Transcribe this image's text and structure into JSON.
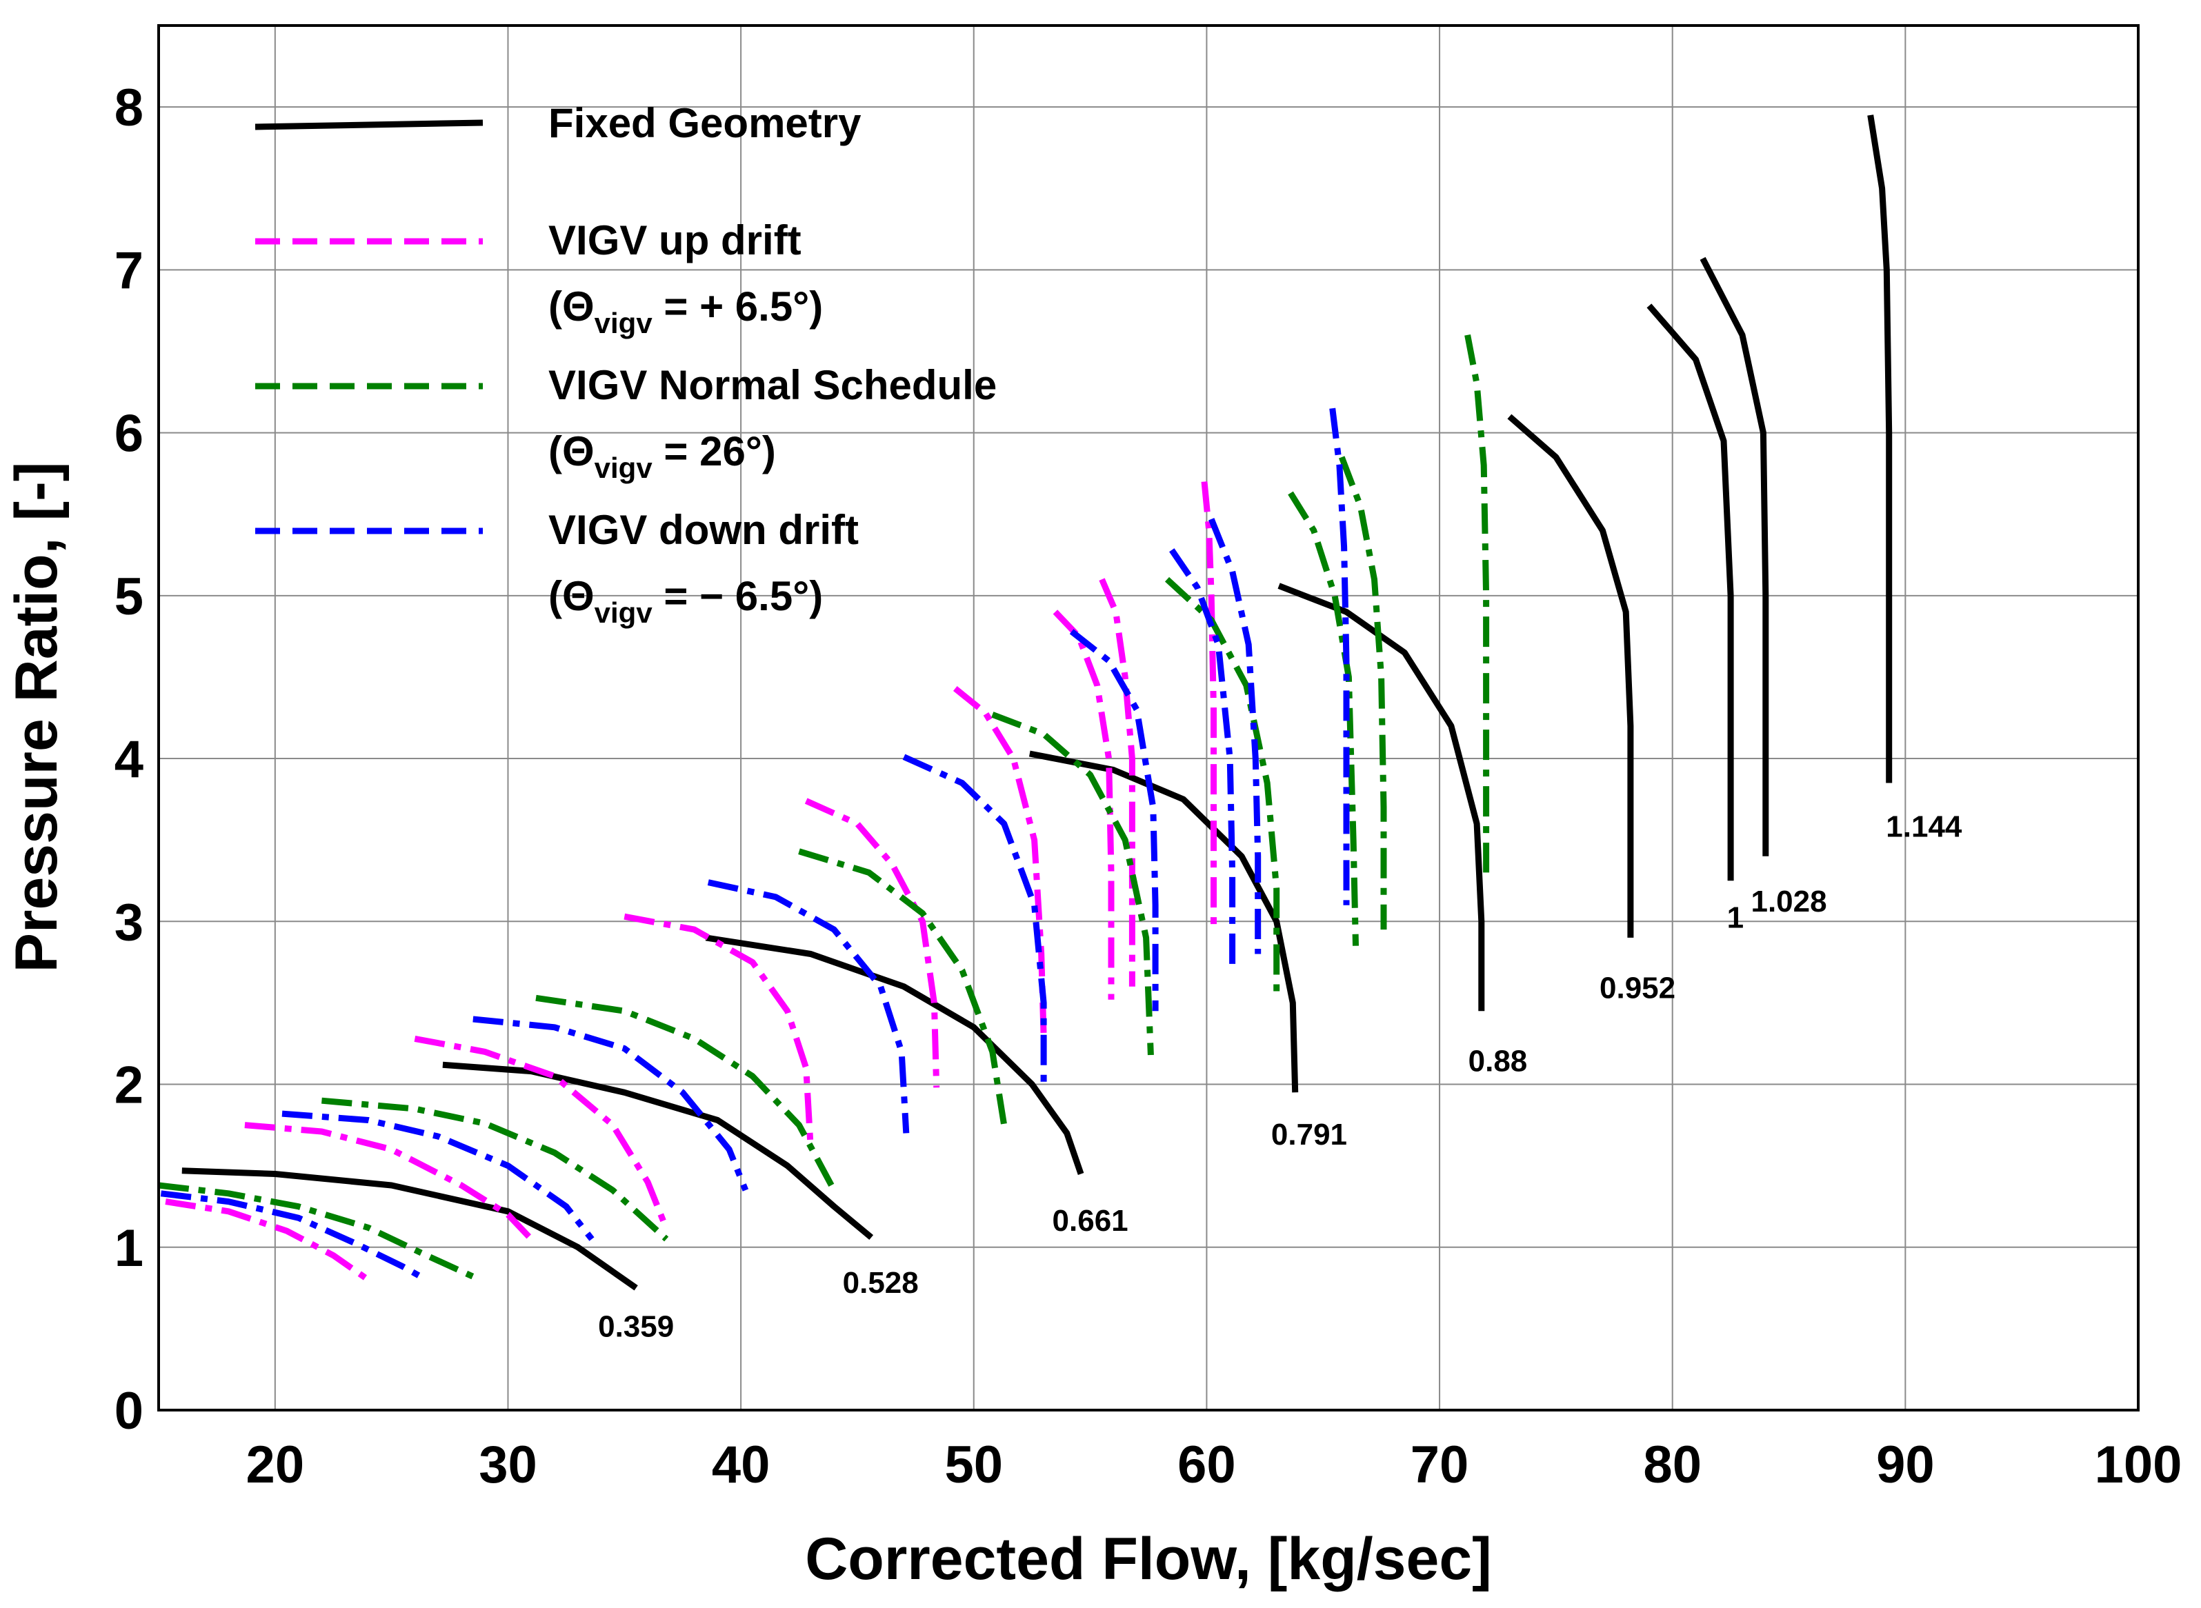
{
  "chart_data": {
    "type": "line",
    "title": "",
    "xlabel": "Corrected Flow, [kg/sec]",
    "ylabel": "Pressure Ratio, [-]",
    "xlim": [
      15,
      100
    ],
    "ylim": [
      0,
      8.5
    ],
    "xticks": [
      20,
      30,
      40,
      50,
      60,
      70,
      80,
      90,
      100
    ],
    "yticks": [
      0,
      1,
      2,
      3,
      4,
      5,
      6,
      7,
      8
    ],
    "grid": true,
    "legend_position": "top-left",
    "legend": [
      {
        "key": "fixed",
        "label": "Fixed Geometry",
        "color": "#000000",
        "style": "solid",
        "paren": null
      },
      {
        "key": "up",
        "label": "VIGV up drift",
        "color": "#ff00ff",
        "style": "dashdot",
        "paren": {
          "open": "(Θ",
          "sub": "vigv",
          "rest": " = + 6.5°)"
        }
      },
      {
        "key": "normal",
        "label": "VIGV Normal Schedule",
        "color": "#008000",
        "style": "dashdot",
        "paren": {
          "open": "(Θ",
          "sub": "vigv",
          "rest": " = 26°)"
        }
      },
      {
        "key": "down",
        "label": "VIGV down drift",
        "color": "#0000ff",
        "style": "dashdot",
        "paren": {
          "open": "(Θ",
          "sub": "vigv",
          "rest": " = − 6.5°)"
        }
      }
    ],
    "speed_labels": [
      {
        "text": "0.359",
        "x": 35.5,
        "y": 0.45
      },
      {
        "text": "0.528",
        "x": 46.0,
        "y": 0.72
      },
      {
        "text": "0.661",
        "x": 55.0,
        "y": 1.1
      },
      {
        "text": "0.791",
        "x": 64.4,
        "y": 1.63
      },
      {
        "text": "0.88",
        "x": 72.5,
        "y": 2.08
      },
      {
        "text": "0.952",
        "x": 78.5,
        "y": 2.53
      },
      {
        "text": "1",
        "x": 82.7,
        "y": 2.96
      },
      {
        "text": "1.028",
        "x": 85.0,
        "y": 3.06
      },
      {
        "text": "1.144",
        "x": 90.8,
        "y": 3.52
      }
    ],
    "series": [
      {
        "name": "Fixed Geometry",
        "color": "#000000",
        "style": "solid",
        "curves": [
          [
            [
              16.0,
              1.47
            ],
            [
              20,
              1.45
            ],
            [
              25,
              1.38
            ],
            [
              30,
              1.22
            ],
            [
              33,
              1.0
            ],
            [
              35.5,
              0.75
            ]
          ],
          [
            [
              27.2,
              2.12
            ],
            [
              31,
              2.08
            ],
            [
              35,
              1.95
            ],
            [
              39,
              1.78
            ],
            [
              42,
              1.5
            ],
            [
              44,
              1.25
            ],
            [
              45.6,
              1.06
            ]
          ],
          [
            [
              38.5,
              2.9
            ],
            [
              43,
              2.8
            ],
            [
              47,
              2.6
            ],
            [
              50,
              2.35
            ],
            [
              52.5,
              2.0
            ],
            [
              54,
              1.7
            ],
            [
              54.6,
              1.45
            ]
          ],
          [
            [
              52.4,
              4.03
            ],
            [
              56,
              3.93
            ],
            [
              59,
              3.75
            ],
            [
              61.5,
              3.4
            ],
            [
              63,
              3.0
            ],
            [
              63.7,
              2.5
            ],
            [
              63.8,
              1.95
            ]
          ],
          [
            [
              63.1,
              5.06
            ],
            [
              66,
              4.9
            ],
            [
              68.5,
              4.65
            ],
            [
              70.5,
              4.2
            ],
            [
              71.6,
              3.6
            ],
            [
              71.8,
              3.0
            ],
            [
              71.8,
              2.45
            ]
          ],
          [
            [
              73.0,
              6.1
            ],
            [
              75,
              5.85
            ],
            [
              77,
              5.4
            ],
            [
              78.0,
              4.9
            ],
            [
              78.2,
              4.2
            ],
            [
              78.2,
              2.9
            ]
          ],
          [
            [
              79.0,
              6.78
            ],
            [
              81,
              6.45
            ],
            [
              82.2,
              5.95
            ],
            [
              82.5,
              5.0
            ],
            [
              82.5,
              3.25
            ]
          ],
          [
            [
              81.3,
              7.07
            ],
            [
              83,
              6.6
            ],
            [
              83.9,
              6.0
            ],
            [
              84.0,
              5.0
            ],
            [
              84.0,
              3.4
            ]
          ],
          [
            [
              88.5,
              7.95
            ],
            [
              89.0,
              7.5
            ],
            [
              89.2,
              7.0
            ],
            [
              89.3,
              6.0
            ],
            [
              89.3,
              3.85
            ]
          ]
        ]
      },
      {
        "name": "VIGV up drift",
        "color": "#ff00ff",
        "style": "dashdot",
        "curves": [
          [
            [
              15.3,
              1.28
            ],
            [
              18,
              1.22
            ],
            [
              20.5,
              1.1
            ],
            [
              22.5,
              0.95
            ],
            [
              24.0,
              0.8
            ]
          ],
          [
            [
              18.7,
              1.75
            ],
            [
              22,
              1.71
            ],
            [
              25,
              1.6
            ],
            [
              28,
              1.38
            ],
            [
              30,
              1.2
            ],
            [
              31.0,
              1.05
            ]
          ],
          [
            [
              26.0,
              2.28
            ],
            [
              29,
              2.2
            ],
            [
              32,
              2.05
            ],
            [
              34.5,
              1.75
            ],
            [
              36,
              1.4
            ],
            [
              36.7,
              1.15
            ]
          ],
          [
            [
              35.0,
              3.03
            ],
            [
              38,
              2.95
            ],
            [
              40.5,
              2.75
            ],
            [
              42,
              2.45
            ],
            [
              42.8,
              2.1
            ],
            [
              43.0,
              1.6
            ]
          ],
          [
            [
              42.8,
              3.74
            ],
            [
              45,
              3.6
            ],
            [
              46.5,
              3.35
            ],
            [
              47.8,
              3.0
            ],
            [
              48.3,
              2.5
            ],
            [
              48.4,
              1.98
            ]
          ],
          [
            [
              49.2,
              4.43
            ],
            [
              50.5,
              4.28
            ],
            [
              51.7,
              4.0
            ],
            [
              52.6,
              3.5
            ],
            [
              52.9,
              2.8
            ],
            [
              53.0,
              2.3
            ]
          ],
          [
            [
              53.5,
              4.9
            ],
            [
              54.5,
              4.75
            ],
            [
              55.3,
              4.45
            ],
            [
              55.8,
              4.0
            ],
            [
              55.9,
              3.3
            ],
            [
              55.9,
              2.52
            ]
          ],
          [
            [
              55.5,
              5.1
            ],
            [
              56.1,
              4.9
            ],
            [
              56.5,
              4.5
            ],
            [
              56.8,
              4.0
            ],
            [
              56.8,
              3.3
            ],
            [
              56.8,
              2.6
            ]
          ],
          [
            [
              59.9,
              5.7
            ],
            [
              60.1,
              5.4
            ],
            [
              60.2,
              5.0
            ],
            [
              60.3,
              4.3
            ],
            [
              60.3,
              3.5
            ],
            [
              60.3,
              2.95
            ]
          ]
        ]
      },
      {
        "name": "VIGV Normal Schedule",
        "color": "#008000",
        "style": "dashdot",
        "curves": [
          [
            [
              15.0,
              1.38
            ],
            [
              18,
              1.33
            ],
            [
              21,
              1.25
            ],
            [
              24,
              1.12
            ],
            [
              26.5,
              0.95
            ],
            [
              28.8,
              0.8
            ]
          ],
          [
            [
              22.0,
              1.9
            ],
            [
              26,
              1.85
            ],
            [
              29,
              1.76
            ],
            [
              32,
              1.58
            ],
            [
              34.5,
              1.35
            ],
            [
              36.8,
              1.05
            ]
          ],
          [
            [
              31.2,
              2.53
            ],
            [
              35,
              2.45
            ],
            [
              38,
              2.28
            ],
            [
              40.5,
              2.05
            ],
            [
              42.5,
              1.75
            ],
            [
              44.0,
              1.35
            ]
          ],
          [
            [
              42.5,
              3.43
            ],
            [
              45.5,
              3.3
            ],
            [
              47.8,
              3.05
            ],
            [
              49.5,
              2.7
            ],
            [
              50.8,
              2.2
            ],
            [
              51.3,
              1.75
            ]
          ],
          [
            [
              50.8,
              4.27
            ],
            [
              53,
              4.15
            ],
            [
              55,
              3.9
            ],
            [
              56.5,
              3.5
            ],
            [
              57.4,
              2.9
            ],
            [
              57.6,
              2.18
            ]
          ],
          [
            [
              58.3,
              5.1
            ],
            [
              60.2,
              4.85
            ],
            [
              61.7,
              4.45
            ],
            [
              62.6,
              3.85
            ],
            [
              63.0,
              3.2
            ],
            [
              63.0,
              2.55
            ]
          ],
          [
            [
              63.6,
              5.63
            ],
            [
              64.6,
              5.4
            ],
            [
              65.5,
              5.0
            ],
            [
              66.1,
              4.5
            ],
            [
              66.3,
              3.5
            ],
            [
              66.4,
              2.85
            ]
          ],
          [
            [
              65.8,
              5.85
            ],
            [
              66.6,
              5.55
            ],
            [
              67.2,
              5.1
            ],
            [
              67.5,
              4.5
            ],
            [
              67.6,
              3.7
            ],
            [
              67.6,
              2.95
            ]
          ],
          [
            [
              71.2,
              6.6
            ],
            [
              71.6,
              6.3
            ],
            [
              71.9,
              5.8
            ],
            [
              72.0,
              5.0
            ],
            [
              72.0,
              4.0
            ],
            [
              72.0,
              3.3
            ]
          ]
        ]
      },
      {
        "name": "VIGV down drift",
        "color": "#0000ff",
        "style": "dashdot",
        "curves": [
          [
            [
              15.1,
              1.33
            ],
            [
              18,
              1.28
            ],
            [
              21,
              1.18
            ],
            [
              23.5,
              1.02
            ],
            [
              25.5,
              0.88
            ],
            [
              26.5,
              0.8
            ]
          ],
          [
            [
              20.3,
              1.82
            ],
            [
              24,
              1.78
            ],
            [
              27,
              1.68
            ],
            [
              30,
              1.5
            ],
            [
              32.5,
              1.25
            ],
            [
              33.6,
              1.05
            ]
          ],
          [
            [
              28.5,
              2.4
            ],
            [
              32,
              2.35
            ],
            [
              35,
              2.22
            ],
            [
              37.5,
              1.95
            ],
            [
              39.5,
              1.6
            ],
            [
              40.2,
              1.35
            ]
          ],
          [
            [
              38.6,
              3.24
            ],
            [
              41.5,
              3.15
            ],
            [
              44,
              2.95
            ],
            [
              46,
              2.6
            ],
            [
              46.9,
              2.2
            ],
            [
              47.1,
              1.7
            ]
          ],
          [
            [
              47.0,
              4.01
            ],
            [
              49.5,
              3.85
            ],
            [
              51.3,
              3.6
            ],
            [
              52.6,
              3.1
            ],
            [
              53.0,
              2.5
            ],
            [
              53.0,
              2.0
            ]
          ],
          [
            [
              54.2,
              4.78
            ],
            [
              55.8,
              4.6
            ],
            [
              57.0,
              4.3
            ],
            [
              57.7,
              3.7
            ],
            [
              57.8,
              3.1
            ],
            [
              57.8,
              2.45
            ]
          ],
          [
            [
              58.5,
              5.28
            ],
            [
              59.6,
              5.05
            ],
            [
              60.5,
              4.7
            ],
            [
              61.0,
              4.0
            ],
            [
              61.1,
              3.3
            ],
            [
              61.1,
              2.7
            ]
          ],
          [
            [
              60.2,
              5.47
            ],
            [
              61.1,
              5.15
            ],
            [
              61.8,
              4.7
            ],
            [
              62.1,
              4.0
            ],
            [
              62.2,
              3.4
            ],
            [
              62.2,
              2.8
            ]
          ],
          [
            [
              65.4,
              6.15
            ],
            [
              65.7,
              5.8
            ],
            [
              65.9,
              5.3
            ],
            [
              66.0,
              4.6
            ],
            [
              66.0,
              3.8
            ],
            [
              66.0,
              3.1
            ]
          ]
        ]
      }
    ]
  }
}
